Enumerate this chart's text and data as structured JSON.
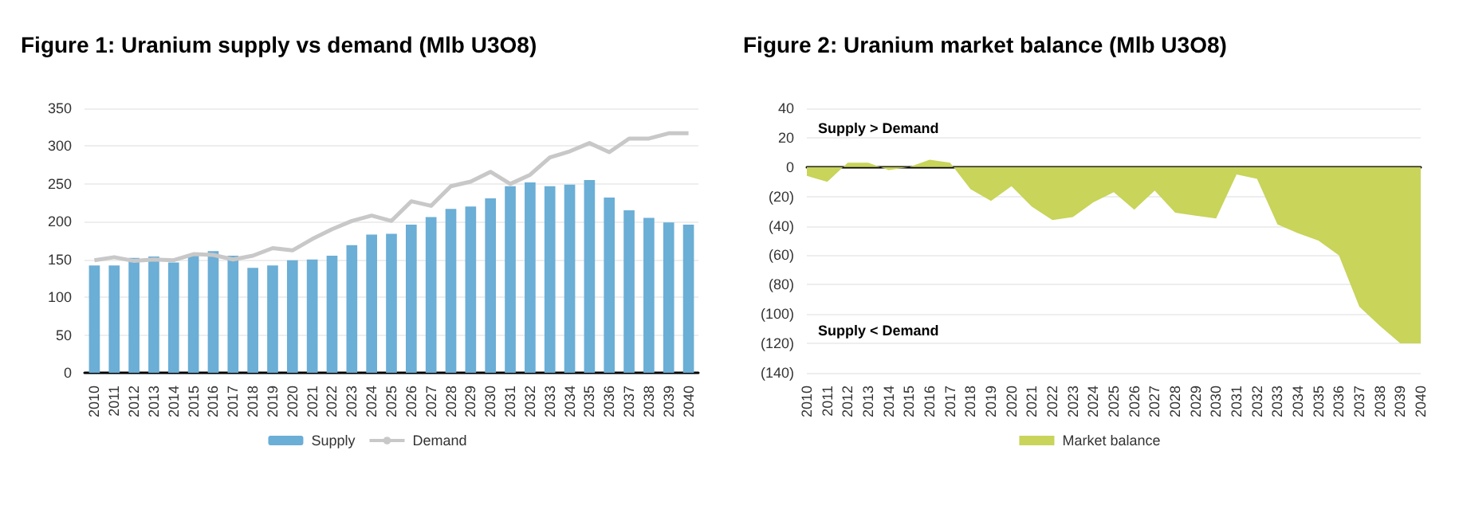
{
  "chart_data": [
    {
      "type": "bar",
      "title": "Figure 1: Uranium supply vs demand (Mlb U3O8)",
      "categories": [
        "2010",
        "2011",
        "2012",
        "2013",
        "2014",
        "2015",
        "2016",
        "2017",
        "2018",
        "2019",
        "2020",
        "2021",
        "2022",
        "2023",
        "2024",
        "2025",
        "2026",
        "2027",
        "2028",
        "2029",
        "2030",
        "2031",
        "2032",
        "2033",
        "2034",
        "2035",
        "2036",
        "2037",
        "2038",
        "2039",
        "2040"
      ],
      "series": [
        {
          "name": "Supply",
          "type": "bar",
          "color": "#6baed6",
          "values": [
            142,
            142,
            152,
            154,
            146,
            155,
            161,
            155,
            139,
            142,
            149,
            150,
            155,
            169,
            183,
            184,
            196,
            206,
            217,
            220,
            231,
            247,
            252,
            247,
            249,
            255,
            232,
            215,
            205,
            199,
            196
          ]
        },
        {
          "name": "Demand",
          "type": "line",
          "color": "#c8c8c8",
          "values": [
            149,
            153,
            148,
            150,
            149,
            157,
            156,
            150,
            155,
            165,
            162,
            177,
            190,
            201,
            208,
            201,
            227,
            221,
            247,
            253,
            266,
            250,
            262,
            285,
            293,
            304,
            292,
            310,
            310,
            317,
            317
          ]
        }
      ],
      "ylim": [
        0,
        350
      ],
      "yticks": [
        0,
        50,
        100,
        150,
        200,
        250,
        300,
        350
      ],
      "grid": "y",
      "legend": "bottom",
      "marker": "none"
    },
    {
      "type": "area",
      "title": "Figure 2: Uranium market balance (Mlb U3O8)",
      "categories": [
        "2010",
        "2011",
        "2012",
        "2013",
        "2014",
        "2015",
        "2016",
        "2017",
        "2018",
        "2019",
        "2020",
        "2021",
        "2022",
        "2023",
        "2024",
        "2025",
        "2026",
        "2027",
        "2028",
        "2029",
        "2030",
        "2031",
        "2032",
        "2033",
        "2034",
        "2035",
        "2036",
        "2037",
        "2038",
        "2039",
        "2040"
      ],
      "series": [
        {
          "name": "Market balance",
          "color": "#c8d45a",
          "values": [
            -6,
            -10,
            3,
            3,
            -2,
            0,
            5,
            3,
            -15,
            -23,
            -13,
            -27,
            -36,
            -34,
            -24,
            -17,
            -29,
            -16,
            -31,
            -33,
            -35,
            -5,
            -8,
            -39,
            -45,
            -50,
            -60,
            -95,
            -108,
            -120,
            -120
          ]
        }
      ],
      "ylim": [
        -140,
        40
      ],
      "yticks": [
        {
          "value": -140,
          "label": "(140)"
        },
        {
          "value": -120,
          "label": "(120)"
        },
        {
          "value": -100,
          "label": "(100)"
        },
        {
          "value": -80,
          "label": "(80)"
        },
        {
          "value": -60,
          "label": "(60)"
        },
        {
          "value": -40,
          "label": "(40)"
        },
        {
          "value": -20,
          "label": "(20)"
        },
        0,
        20,
        40
      ],
      "grid": "y",
      "legend": "bottom",
      "marker": "none",
      "annotations": [
        "Supply > Demand",
        "Supply < Demand"
      ]
    }
  ]
}
